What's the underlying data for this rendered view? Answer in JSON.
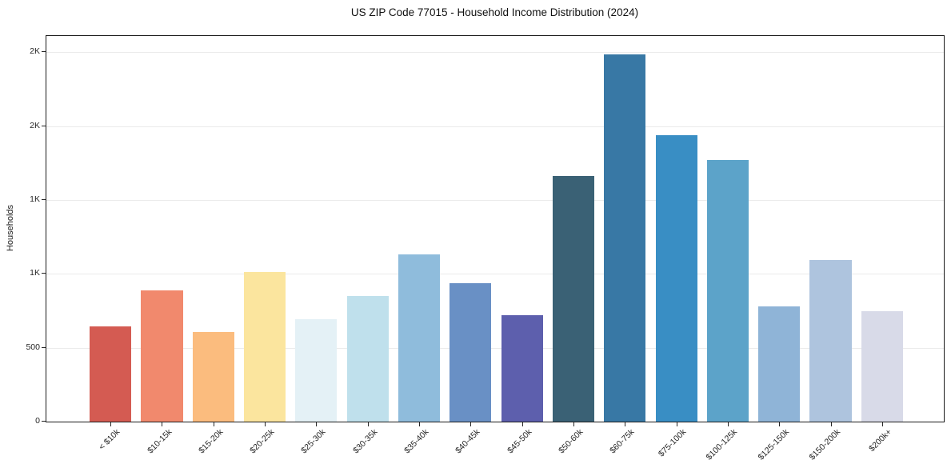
{
  "chart_data": {
    "type": "bar",
    "title": "US ZIP Code 77015 - Household Income Distribution (2024)",
    "xlabel": "",
    "ylabel": "Households",
    "categories": [
      "< $10k",
      "$10-15k",
      "$15-20k",
      "$20-25k",
      "$25-30k",
      "$30-35k",
      "$35-40k",
      "$40-45k",
      "$45-50k",
      "$50-60k",
      "$60-75k",
      "$75-100k",
      "$100-125k",
      "$125-150k",
      "$150-200k",
      "$200k+"
    ],
    "values": [
      645,
      890,
      605,
      1010,
      695,
      850,
      1130,
      935,
      720,
      1665,
      2485,
      1940,
      1770,
      780,
      1095,
      745
    ],
    "bar_colors": [
      "#d45b52",
      "#f1896d",
      "#fbbc7e",
      "#fbe59e",
      "#e4f1f6",
      "#bfe0ec",
      "#8fbcdc",
      "#6990c5",
      "#5d5fad",
      "#3a6175",
      "#3878a5",
      "#398ec4",
      "#5ca3c9",
      "#8fb4d7",
      "#aec4de",
      "#d8dae8"
    ],
    "ylim": [
      0,
      2610
    ],
    "yticks": [
      {
        "value": 0,
        "label": "0"
      },
      {
        "value": 500,
        "label": "500"
      },
      {
        "value": 1000,
        "label": "1K"
      },
      {
        "value": 1500,
        "label": "1K"
      },
      {
        "value": 2000,
        "label": "2K"
      },
      {
        "value": 2500,
        "label": "2K"
      }
    ],
    "grid": "horizontal",
    "legend": "none",
    "background_color": "#ffffff",
    "spine_color": "#1b1b1b",
    "grid_color": "#ebebeb"
  }
}
